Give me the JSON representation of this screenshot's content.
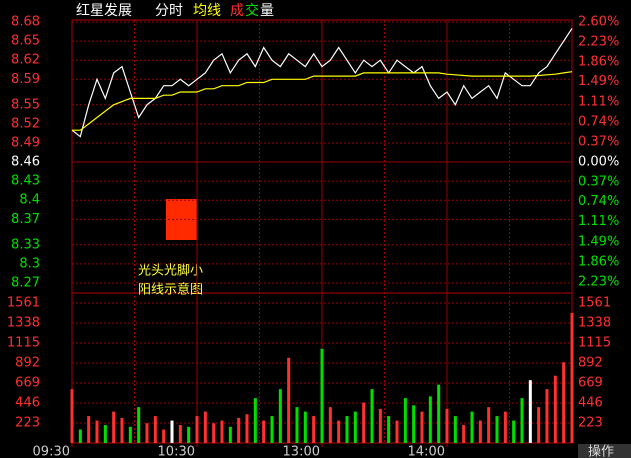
{
  "chart_data": {
    "type": "intraday",
    "title": "红星发展",
    "series": [
      {
        "name": "分时",
        "color": "#ffffff",
        "values": [
          8.51,
          8.5,
          8.55,
          8.59,
          8.56,
          8.6,
          8.61,
          8.57,
          8.53,
          8.55,
          8.56,
          8.58,
          8.58,
          8.59,
          8.58,
          8.59,
          8.6,
          8.62,
          8.63,
          8.6,
          8.62,
          8.63,
          8.61,
          8.64,
          8.62,
          8.61,
          8.63,
          8.62,
          8.61,
          8.63,
          8.61,
          8.62,
          8.64,
          8.62,
          8.6,
          8.62,
          8.61,
          8.62,
          8.6,
          8.62,
          8.61,
          8.6,
          8.61,
          8.58,
          8.56,
          8.57,
          8.55,
          8.58,
          8.56,
          8.57,
          8.58,
          8.56,
          8.6,
          8.59,
          8.58,
          8.58,
          8.6,
          8.61,
          8.63,
          8.65,
          8.67
        ]
      },
      {
        "name": "均线",
        "color": "#ffff00",
        "values": [
          8.51,
          8.51,
          8.52,
          8.53,
          8.54,
          8.55,
          8.555,
          8.56,
          8.56,
          8.56,
          8.56,
          8.565,
          8.565,
          8.57,
          8.57,
          8.57,
          8.575,
          8.575,
          8.58,
          8.58,
          8.58,
          8.585,
          8.585,
          8.585,
          8.59,
          8.59,
          8.59,
          8.59,
          8.59,
          8.595,
          8.595,
          8.595,
          8.595,
          8.595,
          8.595,
          8.6,
          8.6,
          8.6,
          8.6,
          8.6,
          8.6,
          8.6,
          8.6,
          8.6,
          8.6,
          8.598,
          8.597,
          8.596,
          8.595,
          8.595,
          8.595,
          8.595,
          8.595,
          8.595,
          8.595,
          8.595,
          8.596,
          8.597,
          8.598,
          8.6,
          8.602
        ]
      }
    ],
    "volume": {
      "name_parts": [
        "成",
        "交",
        "量"
      ],
      "values": [
        600,
        150,
        300,
        250,
        200,
        350,
        280,
        180,
        400,
        220,
        300,
        150,
        250,
        200,
        180,
        300,
        350,
        220,
        250,
        180,
        280,
        320,
        500,
        250,
        300,
        600,
        950,
        400,
        350,
        300,
        1050,
        400,
        250,
        300,
        350,
        450,
        600,
        380,
        300,
        250,
        500,
        420,
        350,
        520,
        650,
        380,
        300,
        200,
        350,
        250,
        400,
        300,
        350,
        250,
        500,
        700,
        400,
        600,
        750,
        900,
        1450
      ],
      "ylim": [
        0,
        1672
      ],
      "yticks": [
        223,
        446,
        669,
        892,
        1115,
        1338,
        1561
      ]
    },
    "x": [
      0,
      4,
      8,
      12,
      16,
      20,
      24,
      28,
      32,
      36,
      40,
      44,
      48,
      52,
      56,
      60,
      64,
      68,
      72,
      76,
      80,
      84,
      88,
      92,
      96,
      100,
      104,
      108,
      112,
      116,
      120,
      124,
      128,
      132,
      136,
      140,
      144,
      148,
      152,
      156,
      160,
      164,
      168,
      172,
      176,
      180,
      184,
      188,
      192,
      196,
      200,
      204,
      208,
      212,
      216,
      220,
      224,
      228,
      232,
      236,
      240
    ],
    "xlim": [
      0,
      240
    ],
    "xticks": [
      {
        "value": 0,
        "label": "09:30"
      },
      {
        "value": 60,
        "label": "10:30"
      },
      {
        "value": 120,
        "label": "13:00"
      },
      {
        "value": 180,
        "label": "14:00"
      }
    ],
    "ylim": [
      8.27,
      8.68
    ],
    "yticks": [
      8.68,
      8.65,
      8.62,
      8.59,
      8.55,
      8.52,
      8.49,
      8.46,
      8.43,
      8.4,
      8.37,
      8.33,
      8.3,
      8.27
    ],
    "y2lim": [
      -2.25,
      2.6
    ],
    "y2ticks": [
      {
        "value": 2.6,
        "label": "2.60%"
      },
      {
        "value": 2.23,
        "label": "2.23%"
      },
      {
        "value": 1.86,
        "label": "1.86%"
      },
      {
        "value": 1.49,
        "label": "1.49%"
      },
      {
        "value": 1.11,
        "label": "1.11%"
      },
      {
        "value": 0.74,
        "label": "0.74%"
      },
      {
        "value": 0.37,
        "label": "0.37%"
      },
      {
        "value": 0,
        "label": "0.00%"
      },
      {
        "value": -0.37,
        "label": "0.37%"
      },
      {
        "value": -0.74,
        "label": "0.74%"
      },
      {
        "value": -1.11,
        "label": "1.11%"
      },
      {
        "value": -1.49,
        "label": "1.49%"
      },
      {
        "value": -1.86,
        "label": "1.86%"
      },
      {
        "value": -2.23,
        "label": "2.23%"
      }
    ],
    "grid": true,
    "annotation": [
      "光头光脚小",
      "阳线示意图"
    ],
    "button": "操作"
  }
}
